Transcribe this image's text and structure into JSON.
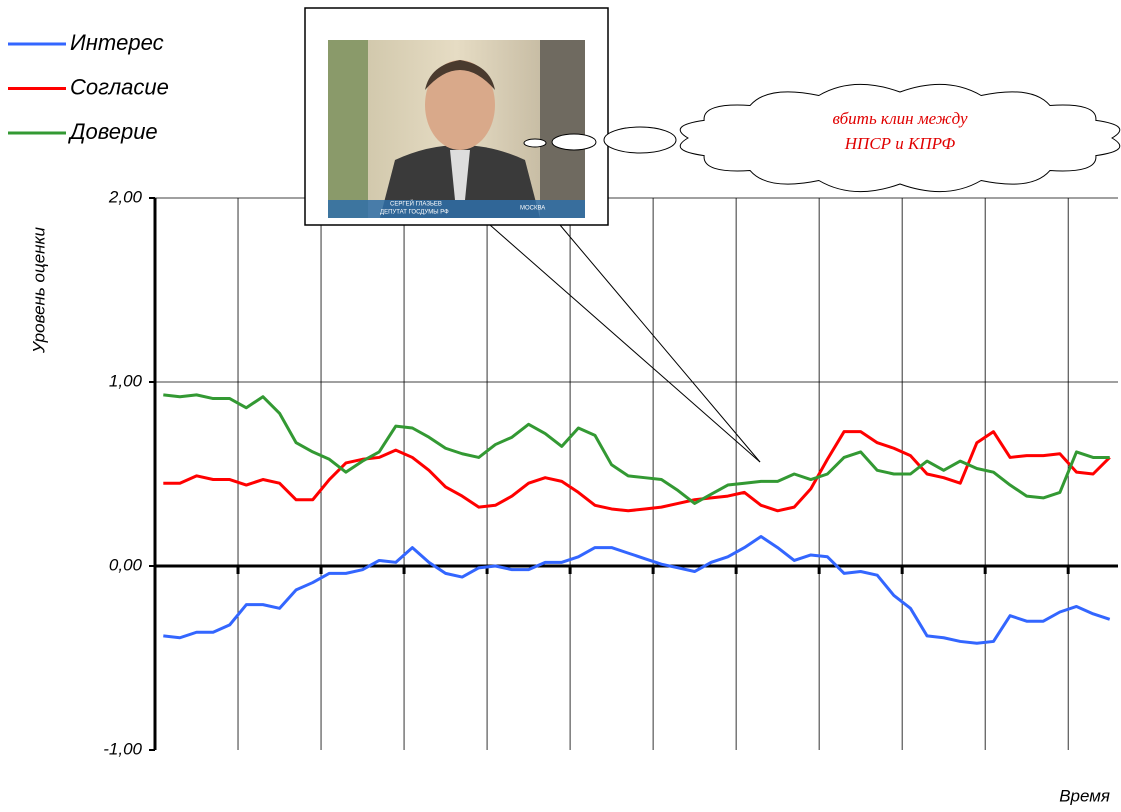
{
  "chart_data": {
    "type": "line",
    "y_label": "Уровень оценки",
    "x_label": "Время",
    "categories": [
      null,
      null,
      null,
      null,
      null,
      null,
      null,
      null,
      null,
      null,
      null,
      null,
      null,
      null,
      null,
      null,
      null,
      null,
      null,
      null,
      null,
      null,
      null,
      null,
      null,
      null,
      null,
      null,
      null,
      null,
      null,
      null,
      null,
      null,
      null,
      null,
      null,
      null,
      null,
      null,
      null,
      null,
      null,
      null,
      null,
      null,
      null,
      null,
      null,
      null,
      null,
      null,
      null,
      null,
      null,
      null,
      null,
      null
    ],
    "ylim": [
      -1,
      2
    ],
    "yticks": [
      {
        "value": -1,
        "label": "-1,00"
      },
      {
        "value": 0,
        "label": "0,00"
      },
      {
        "value": 1,
        "label": "1,00"
      },
      {
        "value": 2,
        "label": "2,00"
      }
    ],
    "grid": true,
    "legend": "top-left",
    "series": [
      {
        "name": "Интерес",
        "color": "#3366ff",
        "values": [
          -0.38,
          -0.39,
          -0.36,
          -0.36,
          -0.32,
          -0.21,
          -0.21,
          -0.23,
          -0.13,
          -0.09,
          -0.04,
          -0.04,
          -0.02,
          0.03,
          0.02,
          0.1,
          0.02,
          -0.04,
          -0.06,
          -0.01,
          0.0,
          -0.02,
          -0.02,
          0.02,
          0.02,
          0.05,
          0.1,
          0.1,
          0.07,
          0.04,
          0.01,
          -0.01,
          -0.03,
          0.02,
          0.05,
          0.1,
          0.16,
          0.1,
          0.03,
          0.06,
          0.05,
          -0.04,
          -0.03,
          -0.05,
          -0.16,
          -0.23,
          -0.38,
          -0.39,
          -0.41,
          -0.42,
          -0.41,
          -0.27,
          -0.3,
          -0.3,
          -0.25,
          -0.22,
          -0.26,
          -0.29
        ]
      },
      {
        "name": "Согласие",
        "color": "#ff0000",
        "values": [
          0.45,
          0.45,
          0.49,
          0.47,
          0.47,
          0.44,
          0.47,
          0.45,
          0.36,
          0.36,
          0.47,
          0.56,
          0.58,
          0.59,
          0.63,
          0.59,
          0.52,
          0.43,
          0.38,
          0.32,
          0.33,
          0.38,
          0.45,
          0.48,
          0.46,
          0.4,
          0.33,
          0.31,
          0.3,
          0.31,
          0.32,
          0.34,
          0.36,
          0.37,
          0.38,
          0.4,
          0.33,
          0.3,
          0.32,
          0.42,
          0.58,
          0.73,
          0.73,
          0.67,
          0.64,
          0.6,
          0.5,
          0.48,
          0.45,
          0.67,
          0.73,
          0.59,
          0.6,
          0.6,
          0.61,
          0.51,
          0.5,
          0.59
        ]
      },
      {
        "name": "Доверие",
        "color": "#339933",
        "values": [
          0.93,
          0.92,
          0.93,
          0.91,
          0.91,
          0.86,
          0.92,
          0.83,
          0.67,
          0.62,
          0.58,
          0.51,
          0.57,
          0.62,
          0.76,
          0.75,
          0.7,
          0.64,
          0.61,
          0.59,
          0.66,
          0.7,
          0.77,
          0.72,
          0.65,
          0.75,
          0.71,
          0.55,
          0.49,
          0.48,
          0.47,
          0.41,
          0.34,
          0.39,
          0.44,
          0.45,
          0.46,
          0.46,
          0.5,
          0.47,
          0.5,
          0.59,
          0.62,
          0.52,
          0.5,
          0.5,
          0.57,
          0.52,
          0.57,
          0.53,
          0.51,
          0.44,
          0.38,
          0.37,
          0.4,
          0.62,
          0.59,
          0.59
        ]
      }
    ],
    "annotations": {
      "photo_caption": [
        "СЕРГЕЙ ГЛАЗЬЕВ",
        "ДЕПУТАТ ГОСДУМЫ РФ",
        "МОСКВА"
      ],
      "cloud_text": [
        "вбить клин между",
        "НПСР и КПРФ"
      ]
    }
  }
}
